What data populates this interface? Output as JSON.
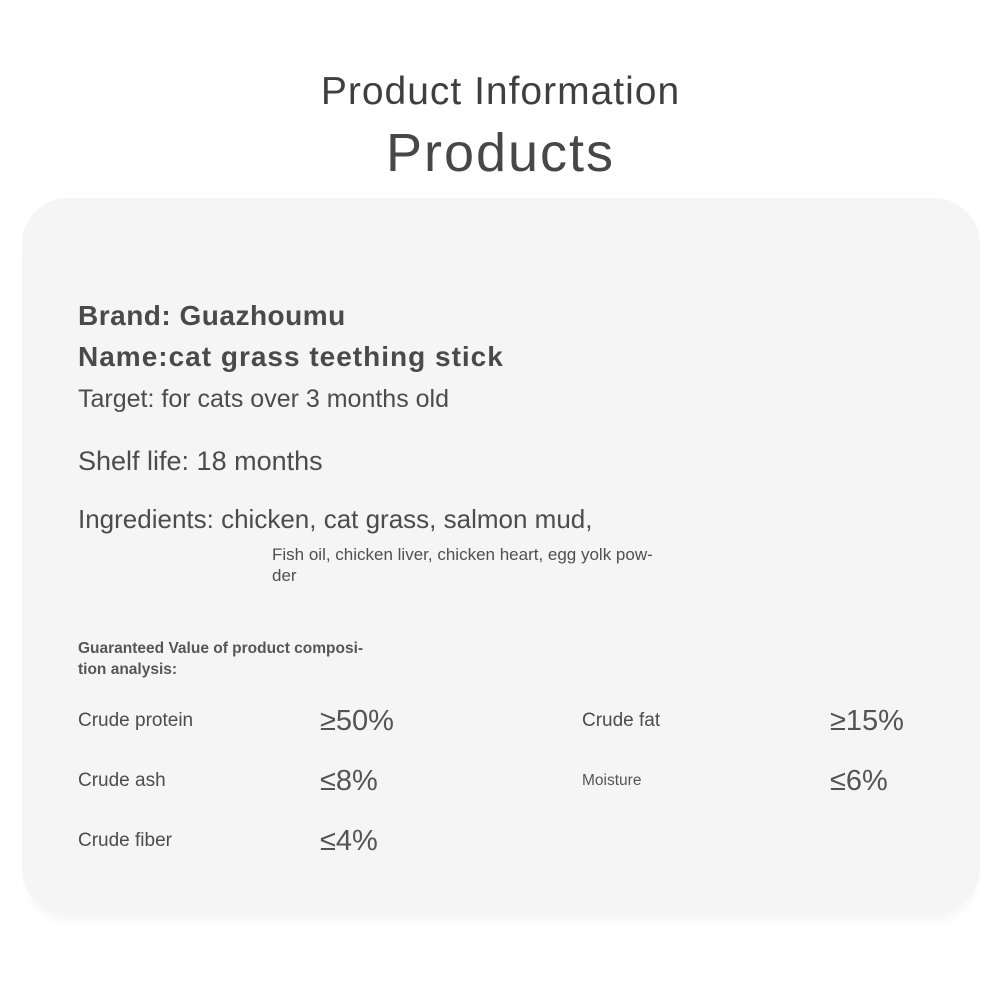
{
  "page": {
    "title": "Product Information",
    "subtitle": "Products"
  },
  "product": {
    "brand_line": "Brand: Guazhoumu",
    "name_line": "Name:cat grass teething stick",
    "target_line": "Target: for cats over 3 months old",
    "shelf_life_line": "Shelf life: 18 months",
    "ingredients_line": "Ingredients: chicken, cat grass, salmon mud,",
    "ingredients_cont_line1": "Fish oil, chicken liver, chicken heart, egg yolk pow-",
    "ingredients_cont_line2": "der"
  },
  "nutrition": {
    "heading_line1": "Guaranteed Value of product composi-",
    "heading_line2": "tion analysis:",
    "items": [
      {
        "label": "Crude protein",
        "value": "≥50%"
      },
      {
        "label": "Crude ash",
        "value": "≤8%"
      },
      {
        "label": "Crude fiber",
        "value": "≤4%"
      },
      {
        "label": "Crude fat",
        "value": "≥15%"
      },
      {
        "label": "Moisture",
        "value": "≤6%"
      }
    ]
  },
  "colors": {
    "page_background": "#ffffff",
    "card_background": "#f5f5f5",
    "text_primary": "#4a4a4a"
  }
}
